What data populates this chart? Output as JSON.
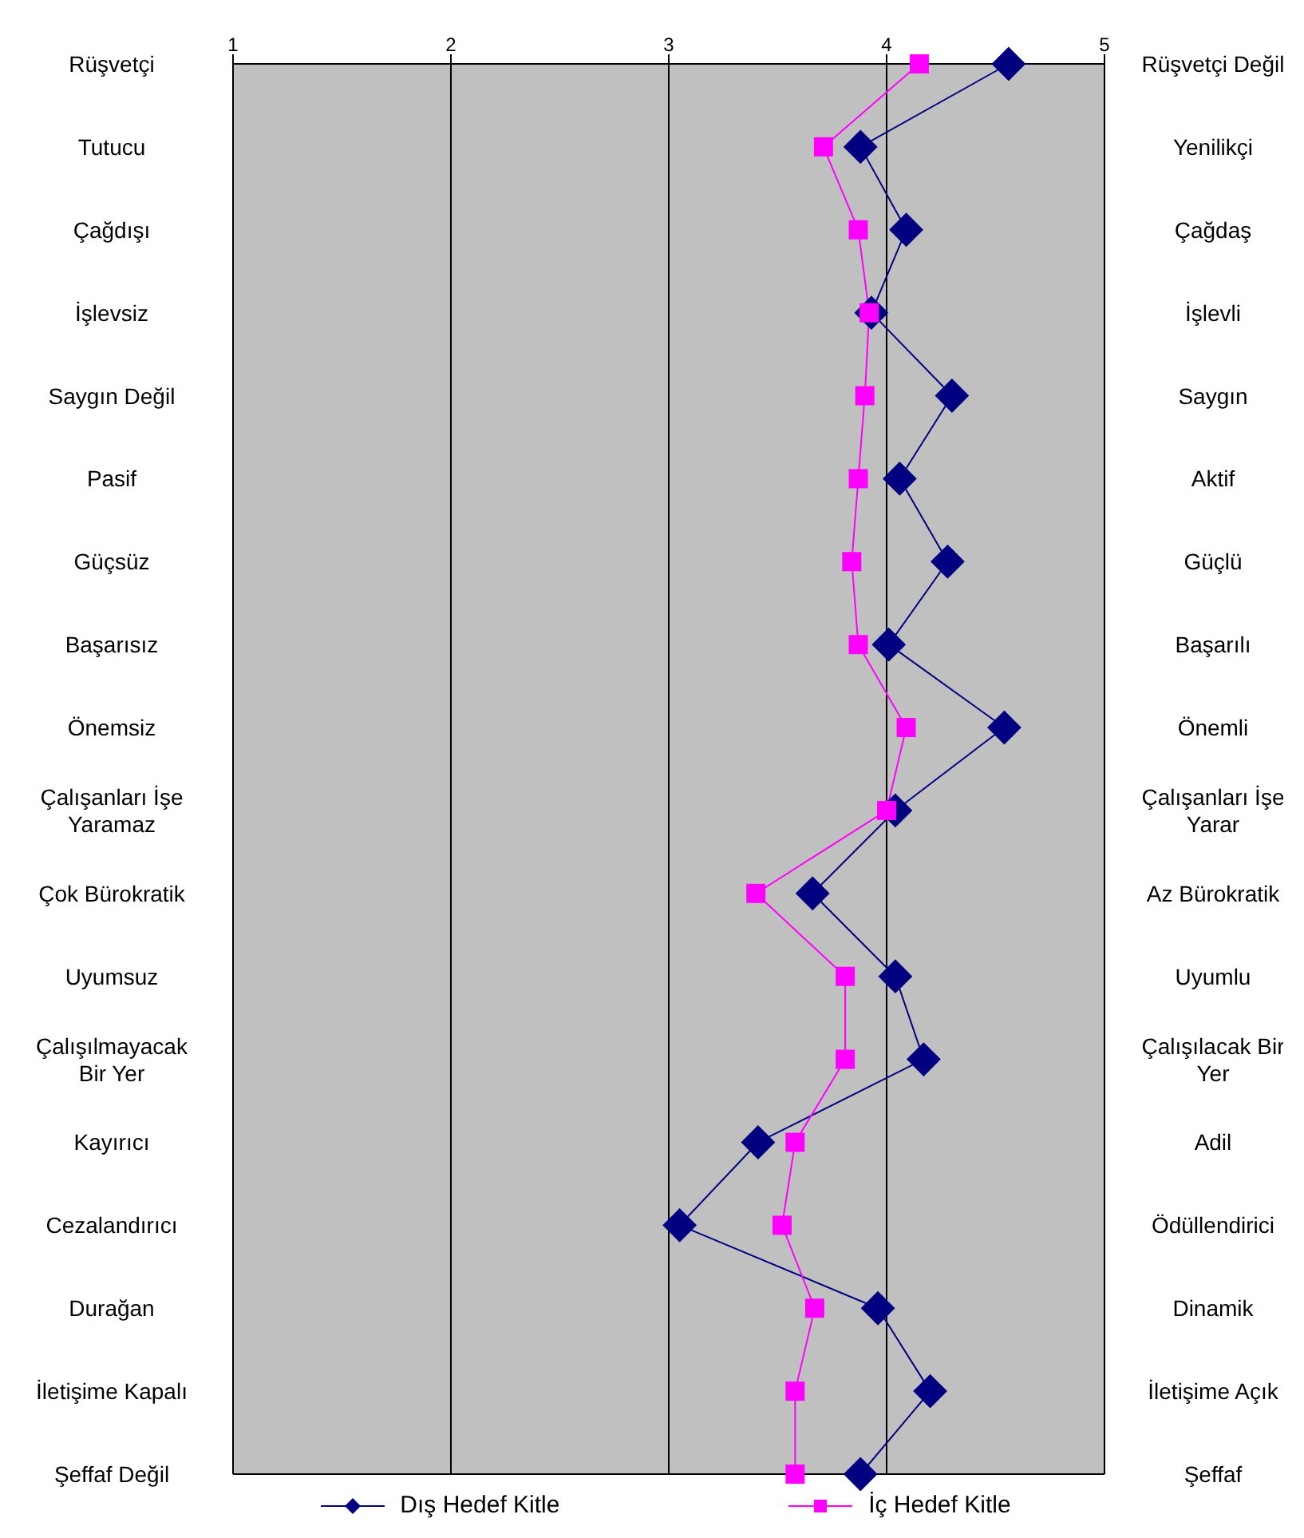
{
  "chart_data": {
    "type": "line",
    "orientation": "horizontal",
    "categories": [
      "Rüşvetçi",
      "Tutucu",
      "Çağdışı",
      "İşlevsiz",
      "Saygın Değil",
      "Pasif",
      "Güçsüz",
      "Başarısız",
      "Önemsiz",
      "Çalışanları İşe Yaramaz",
      "Çok Bürokratik",
      "Uyumsuz",
      "Çalışılmayacak Bir Yer",
      "Kayırıcı",
      "Cezalandırıcı",
      "Durağan",
      "İletişime Kapalı",
      "Şeffaf Değil"
    ],
    "y2_categories": [
      "Rüşvetçi Değil",
      "Yenilikçi",
      "Çağdaş",
      "İşlevli",
      "Saygın",
      "Aktif",
      "Güçlü",
      "Başarılı",
      "Önemli",
      "Çalışanları İşe Yarar",
      "Az Bürokratik",
      "Uyumlu",
      "Çalışılacak Bir Yer",
      "Adil",
      "Ödüllendirici",
      "Dinamik",
      "İletişime Açık",
      "Şeffaf"
    ],
    "xlim": [
      1,
      5
    ],
    "xticks": [
      1,
      2,
      3,
      4,
      5
    ],
    "grid": "x",
    "legend": "bottom",
    "series": [
      {
        "name": "Dış Hedef Kitle",
        "color": "#000080",
        "marker": "diamond",
        "values": [
          4.56,
          3.88,
          4.09,
          3.93,
          4.3,
          4.06,
          4.28,
          4.01,
          4.54,
          4.04,
          3.66,
          4.04,
          4.17,
          3.41,
          3.05,
          3.96,
          4.2,
          3.88
        ]
      },
      {
        "name": "İç Hedef Kitle",
        "color": "#ff00ff",
        "marker": "square",
        "values": [
          4.15,
          3.71,
          3.87,
          3.92,
          3.9,
          3.87,
          3.84,
          3.87,
          4.09,
          4.0,
          3.4,
          3.81,
          3.81,
          3.58,
          3.52,
          3.67,
          3.58,
          3.58
        ]
      }
    ]
  }
}
